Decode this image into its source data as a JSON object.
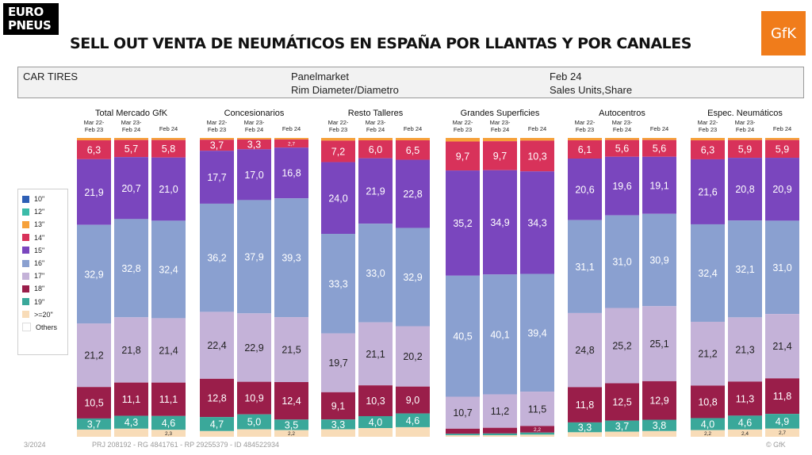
{
  "brand": {
    "line1": "EURO",
    "line2": "PNEUS"
  },
  "gfk_logo": "GfK",
  "title": "SELL OUT VENTA DE NEUMÁTICOS EN ESPAÑA POR LLANTAS Y POR CANALES",
  "info": {
    "car_tires": "CAR TIRES",
    "panel": "Panelmarket",
    "dimension": "Rim Diameter/Diametro",
    "period": "Feb 24",
    "measure": "Sales Units,Share"
  },
  "footer": {
    "date": "3/2024",
    "project": "PRJ 208192 - RG 4841761 - RP 29255379 - ID 484522934",
    "copyright": "© GfK"
  },
  "colors": {
    "10\"": "#2e5fb5",
    "12\"": "#3bbba8",
    "13\"": "#f6a13a",
    "14\"": "#d8325a",
    "15\"": "#7a46be",
    "16\"": "#8aa0d0",
    "17\"": "#c4b2d8",
    "18\"": "#9a1e4a",
    "19\"": "#3aa89a",
    ">=20\"": "#f8dcb8",
    "Others": "#ffffff"
  },
  "chart_data": {
    "type": "stacked-bar-100",
    "legend": [
      "10\"",
      "12\"",
      "13\"",
      "14\"",
      "15\"",
      "16\"",
      "17\"",
      "18\"",
      "19\"",
      ">=20\"",
      "Others"
    ],
    "legend_position": "left",
    "periods": [
      "Mar 22-Feb 23",
      "Mar 23-Feb 24",
      "Feb 24"
    ],
    "groups": [
      {
        "name": "Total Mercado GfK",
        "bars": [
          {
            "values": {
              "13\"": 0.8,
              "14\"": 6.3,
              "15\"": 21.9,
              "16\"": 32.9,
              "17\"": 21.2,
              "18\"": 10.5,
              "19\"": 3.7,
              ">=20\"": 2.4
            },
            "labels": {
              "14\"": "6,3",
              "15\"": "21,9",
              "16\"": "32,9",
              "17\"": "21,2",
              "18\"": "10,5",
              "19\"": "3,7"
            }
          },
          {
            "values": {
              "13\"": 0.7,
              "14\"": 5.7,
              "15\"": 20.7,
              "16\"": 32.8,
              "17\"": 21.8,
              "18\"": 11.1,
              "19\"": 4.3,
              ">=20\"": 2.7
            },
            "labels": {
              "14\"": "5,7",
              "15\"": "20,7",
              "16\"": "32,8",
              "17\"": "21,8",
              "18\"": "11,1",
              "19\"": "4,3"
            }
          },
          {
            "values": {
              "13\"": 0.7,
              "14\"": 5.8,
              "15\"": 21.0,
              "16\"": 32.4,
              "17\"": 21.4,
              "18\"": 11.1,
              "19\"": 4.6,
              ">=20\"": 2.3
            },
            "labels": {
              "14\"": "5,8",
              "15\"": "21,0",
              "16\"": "32,4",
              "17\"": "21,4",
              "18\"": "11,1",
              "19\"": "4,6",
              ">=20\"": "2,3"
            }
          }
        ]
      },
      {
        "name": "Concesionarios",
        "bars": [
          {
            "values": {
              "13\"": 0.6,
              "14\"": 3.7,
              "15\"": 17.7,
              "16\"": 36.2,
              "17\"": 22.4,
              "18\"": 12.8,
              "19\"": 4.7,
              ">=20\"": 1.9
            },
            "labels": {
              "14\"": "3,7",
              "15\"": "17,7",
              "16\"": "36,2",
              "17\"": "22,4",
              "18\"": "12,8",
              "19\"": "4,7"
            }
          },
          {
            "values": {
              "13\"": 0.5,
              "14\"": 3.3,
              "15\"": 17.0,
              "16\"": 37.9,
              "17\"": 22.9,
              "18\"": 10.9,
              "19\"": 5.0,
              ">=20\"": 2.5
            },
            "labels": {
              "14\"": "3,3",
              "15\"": "17,0",
              "16\"": "37,9",
              "17\"": "22,9",
              "18\"": "10,9",
              "19\"": "5,0"
            }
          },
          {
            "values": {
              "13\"": 0.5,
              "14\"": 2.7,
              "15\"": 16.8,
              "16\"": 39.3,
              "17\"": 21.5,
              "18\"": 12.4,
              "19\"": 3.5,
              ">=20\"": 2.2
            },
            "labels": {
              "14\"": "2,7",
              "15\"": "16,8",
              "16\"": "39,3",
              "17\"": "21,5",
              "18\"": "12,4",
              "19\"": "3,5",
              ">=20\"": "2,2"
            }
          }
        ]
      },
      {
        "name": "Resto Talleres",
        "bars": [
          {
            "values": {
              "13\"": 0.9,
              "14\"": 7.2,
              "15\"": 24.0,
              "16\"": 33.3,
              "17\"": 19.7,
              "18\"": 9.1,
              "19\"": 3.3,
              ">=20\"": 2.5
            },
            "labels": {
              "14\"": "7,2",
              "15\"": "24,0",
              "16\"": "33,3",
              "17\"": "19,7",
              "18\"": "9,1",
              "19\"": "3,3"
            }
          },
          {
            "values": {
              "13\"": 0.8,
              "14\"": 6.0,
              "15\"": 21.9,
              "16\"": 33.0,
              "17\"": 21.1,
              "18\"": 10.3,
              "19\"": 4.0,
              ">=20\"": 2.9
            },
            "labels": {
              "14\"": "6,0",
              "15\"": "21,9",
              "16\"": "33,0",
              "17\"": "21,1",
              "18\"": "10,3",
              "19\"": "4,0"
            }
          },
          {
            "values": {
              "13\"": 0.8,
              "14\"": 6.5,
              "15\"": 22.8,
              "16\"": 32.9,
              "17\"": 20.2,
              "18\"": 9.0,
              "19\"": 4.6,
              ">=20\"": 3.2
            },
            "labels": {
              "14\"": "6,5",
              "15\"": "22,8",
              "16\"": "32,9",
              "17\"": "20,2",
              "18\"": "9,0",
              "19\"": "4,6"
            }
          }
        ]
      },
      {
        "name": "Grandes Superficies",
        "bars": [
          {
            "values": {
              "13\"": 1.2,
              "14\"": 9.7,
              "15\"": 35.2,
              "16\"": 40.5,
              "17\"": 10.7,
              "18\"": 1.7,
              "19\"": 0.5,
              ">=20\"": 0.5
            },
            "labels": {
              "14\"": "9,7",
              "15\"": "35,2",
              "16\"": "40,5",
              "17\"": "10,7"
            }
          },
          {
            "values": {
              "13\"": 1.1,
              "14\"": 9.7,
              "15\"": 34.9,
              "16\"": 40.1,
              "17\"": 11.2,
              "18\"": 1.9,
              "19\"": 0.6,
              ">=20\"": 0.5
            },
            "labels": {
              "14\"": "9,7",
              "15\"": "34,9",
              "16\"": "40,1",
              "17\"": "11,2"
            }
          },
          {
            "values": {
              "13\"": 0.9,
              "14\"": 10.3,
              "15\"": 34.3,
              "16\"": 39.4,
              "17\"": 11.5,
              "18\"": 2.2,
              "19\"": 0.7,
              ">=20\"": 0.7
            },
            "labels": {
              "14\"": "10,3",
              "15\"": "34,3",
              "16\"": "39,4",
              "17\"": "11,5",
              "18\"": "2,2"
            }
          }
        ]
      },
      {
        "name": "Autocentros",
        "bars": [
          {
            "values": {
              "13\"": 0.8,
              "14\"": 6.1,
              "15\"": 20.6,
              "16\"": 31.1,
              "17\"": 24.8,
              "18\"": 11.8,
              "19\"": 3.3,
              ">=20\"": 1.5
            },
            "labels": {
              "14\"": "6,1",
              "15\"": "20,6",
              "16\"": "31,1",
              "17\"": "24,8",
              "18\"": "11,8",
              "19\"": "3,3"
            }
          },
          {
            "values": {
              "13\"": 0.7,
              "14\"": 5.6,
              "15\"": 19.6,
              "16\"": 31.0,
              "17\"": 25.2,
              "18\"": 12.5,
              "19\"": 3.7,
              ">=20\"": 1.7
            },
            "labels": {
              "14\"": "5,6",
              "15\"": "19,6",
              "16\"": "31,0",
              "17\"": "25,2",
              "18\"": "12,5",
              "19\"": "3,7"
            }
          },
          {
            "values": {
              "13\"": 0.7,
              "14\"": 5.6,
              "15\"": 19.1,
              "16\"": 30.9,
              "17\"": 25.1,
              "18\"": 12.9,
              "19\"": 3.8,
              ">=20\"": 1.9
            },
            "labels": {
              "14\"": "5,6",
              "15\"": "19,1",
              "16\"": "30,9",
              "17\"": "25,1",
              "18\"": "12,9",
              "19\"": "3,8"
            }
          }
        ]
      },
      {
        "name": "Espec. Neumáticos",
        "bars": [
          {
            "values": {
              "13\"": 0.8,
              "14\"": 6.3,
              "15\"": 21.6,
              "16\"": 32.4,
              "17\"": 21.2,
              "18\"": 10.8,
              "19\"": 4.0,
              ">=20\"": 2.2
            },
            "labels": {
              "14\"": "6,3",
              "15\"": "21,6",
              "16\"": "32,4",
              "17\"": "21,2",
              "18\"": "10,8",
              "19\"": "4,0",
              ">=20\"": "2,2"
            }
          },
          {
            "values": {
              "13\"": 0.7,
              "14\"": 5.9,
              "15\"": 20.8,
              "16\"": 32.1,
              "17\"": 21.3,
              "18\"": 11.3,
              "19\"": 4.6,
              ">=20\"": 2.4
            },
            "labels": {
              "14\"": "5,9",
              "15\"": "20,8",
              "16\"": "32,1",
              "17\"": "21,3",
              "18\"": "11,3",
              "19\"": "4,6",
              ">=20\"": "2,4"
            }
          },
          {
            "values": {
              "13\"": 0.7,
              "14\"": 5.9,
              "15\"": 20.9,
              "16\"": 31.0,
              "17\"": 21.4,
              "18\"": 11.8,
              "19\"": 4.9,
              ">=20\"": 2.7
            },
            "labels": {
              "14\"": "5,9",
              "15\"": "20,9",
              "16\"": "31,0",
              "17\"": "21,4",
              "18\"": "11,8",
              "19\"": "4,9",
              ">=20\"": "2,7"
            }
          }
        ]
      }
    ]
  }
}
